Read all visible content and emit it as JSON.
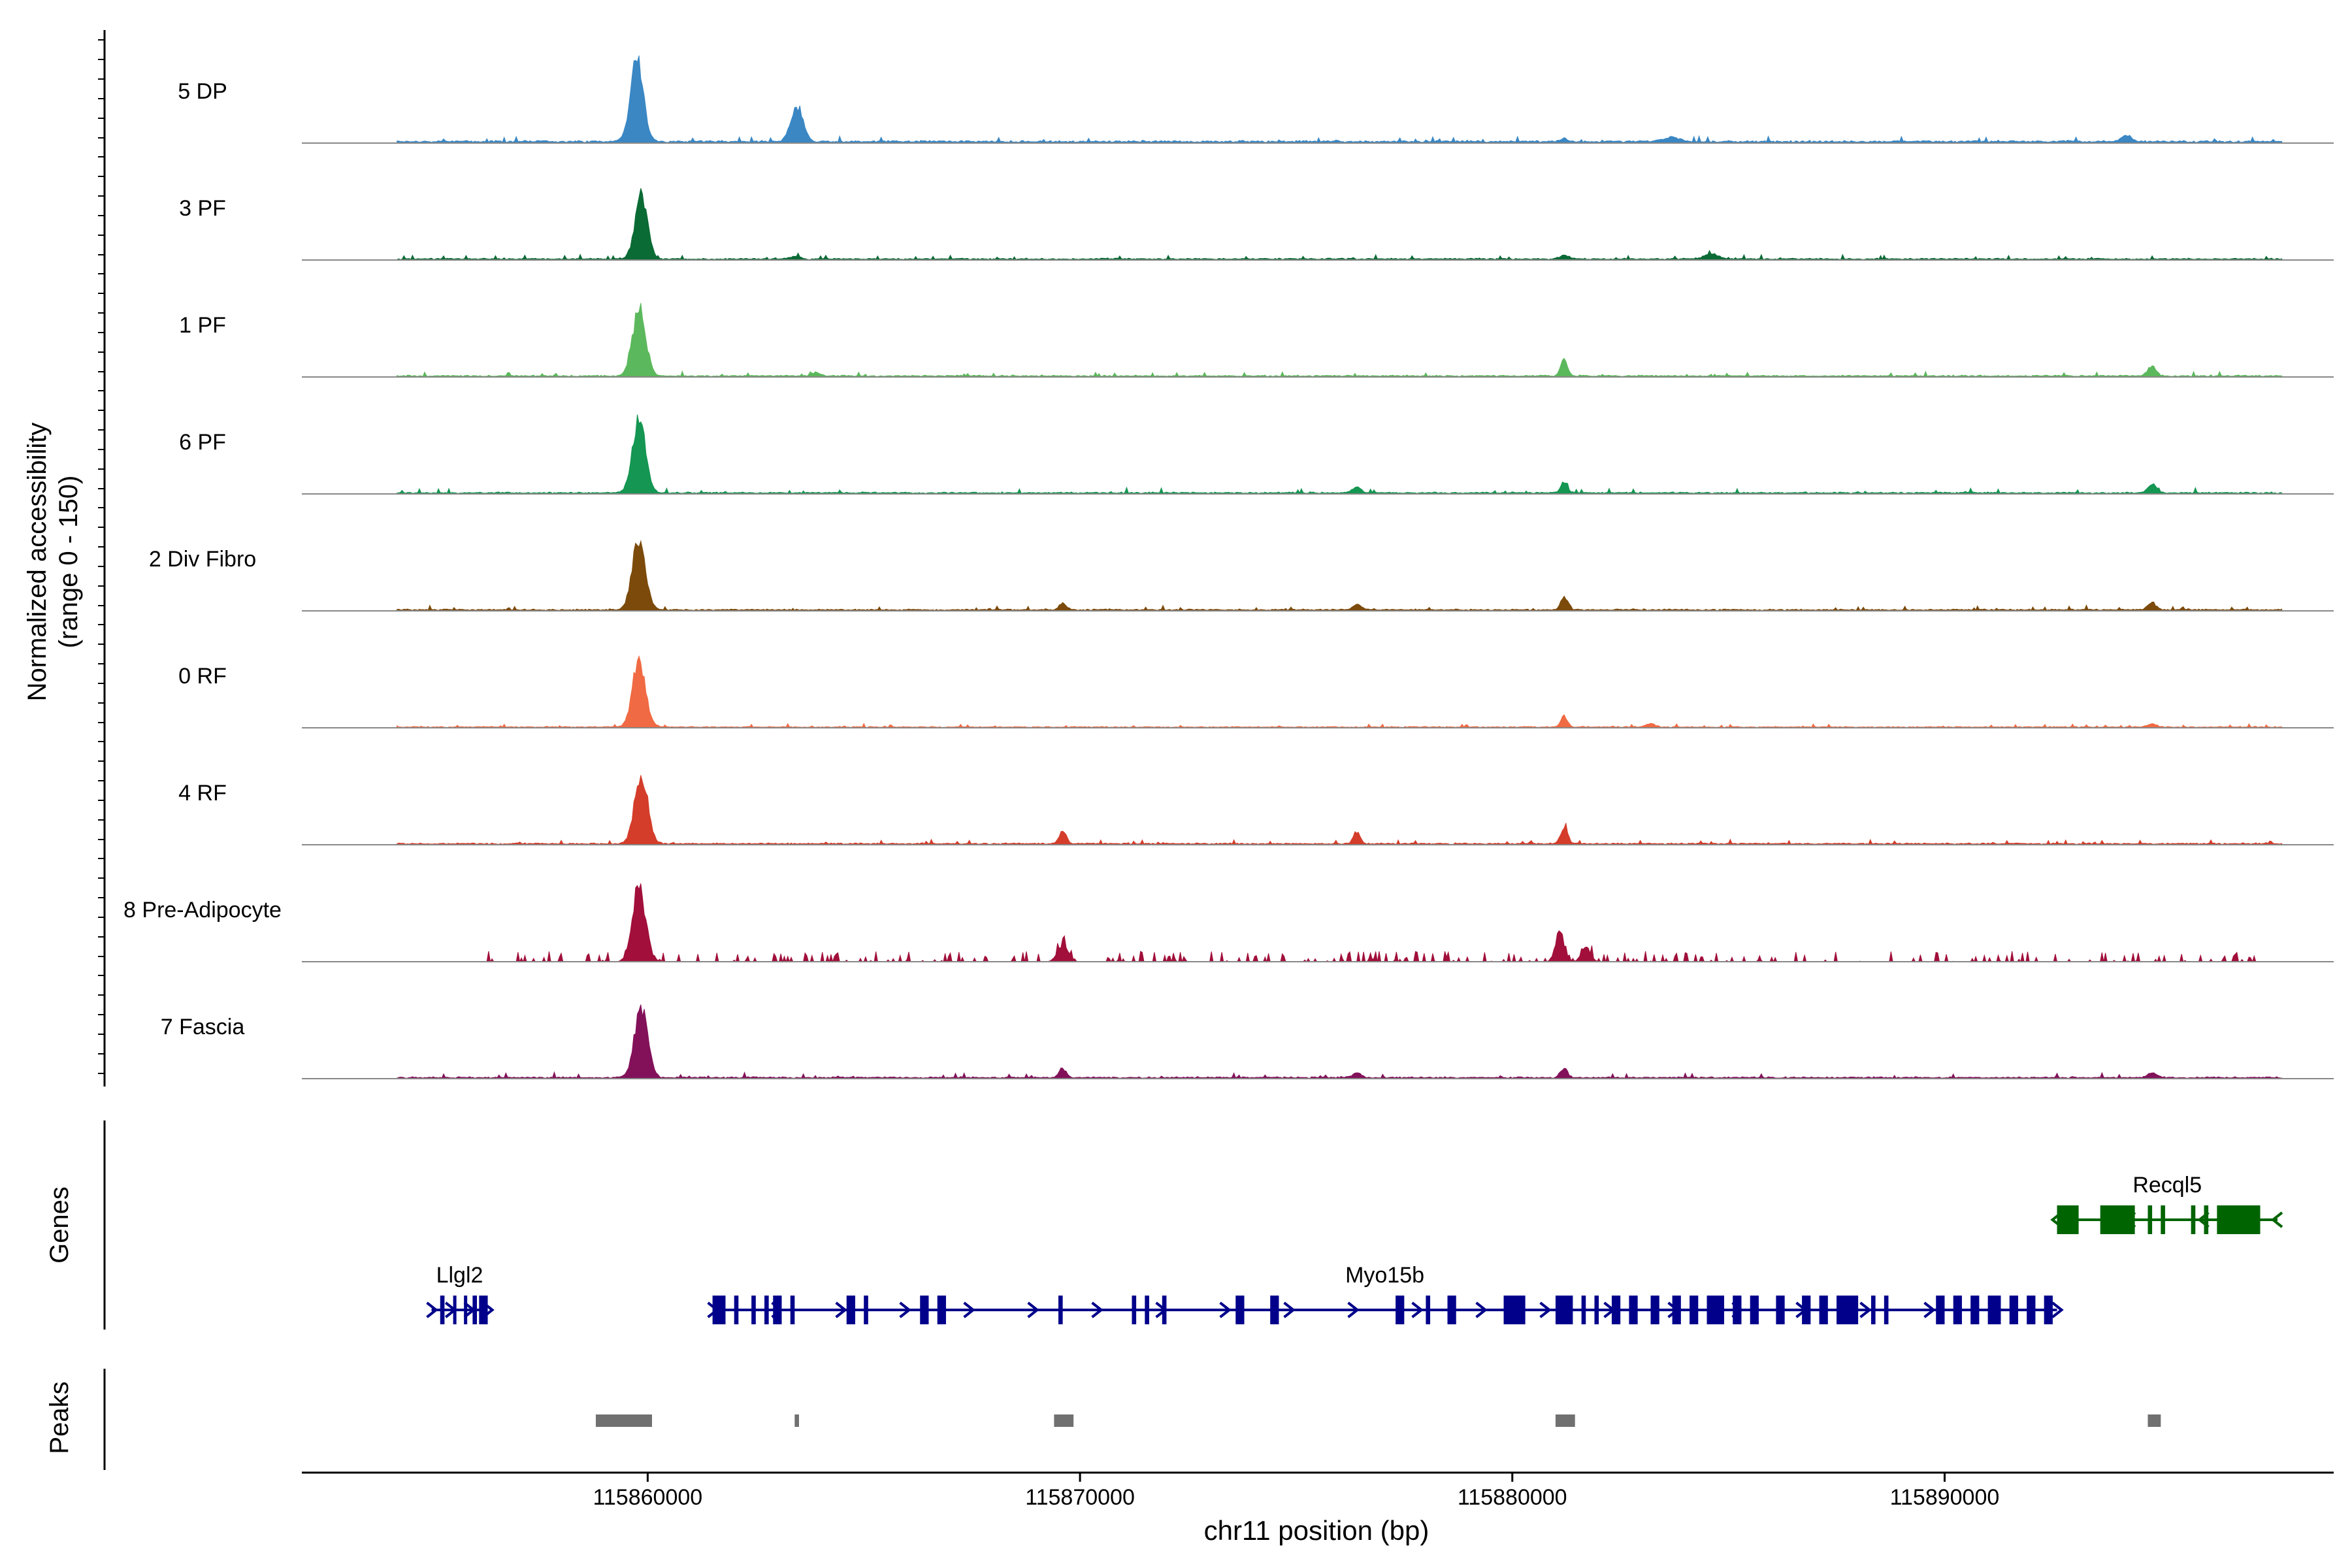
{
  "chart_data": {
    "type": "area",
    "chromosome": "chr11",
    "xlabel": "chr11 position (bp)",
    "ylabel_line1": "Normalized accessibility",
    "ylabel_line2": "(range 0 - 150)",
    "xlim": [
      115852000,
      115899000
    ],
    "yrange": [
      0,
      150
    ],
    "xticks": [
      115860000,
      115870000,
      115880000,
      115890000
    ],
    "xtick_labels": [
      "115860000",
      "115870000",
      "115880000",
      "115890000"
    ],
    "panel_labels": {
      "genes": "Genes",
      "peaks": "Peaks"
    },
    "tracks": [
      {
        "name": "5 DP",
        "color": "#3a87c4",
        "data_start": 115854200,
        "data_end": 115897800,
        "baseline": 3,
        "noise": 3,
        "sparse": false,
        "peaks": [
          [
            115859750,
            138,
            150
          ],
          [
            115863450,
            62,
            140
          ],
          [
            115881200,
            5,
            80
          ],
          [
            115883700,
            7,
            200
          ],
          [
            115894200,
            10,
            120
          ]
        ]
      },
      {
        "name": "3 PF",
        "color": "#0a6b35",
        "data_start": 115854200,
        "data_end": 115897800,
        "baseline": 2,
        "noise": 2.5,
        "sparse": false,
        "peaks": [
          [
            115859850,
            110,
            140
          ],
          [
            115863400,
            5,
            100
          ],
          [
            115881200,
            7,
            100
          ],
          [
            115884600,
            9,
            160
          ]
        ]
      },
      {
        "name": "1 PF",
        "color": "#5cb85c",
        "data_start": 115854200,
        "data_end": 115897800,
        "baseline": 2,
        "noise": 2.5,
        "sparse": false,
        "peaks": [
          [
            115859800,
            118,
            150
          ],
          [
            115863900,
            6,
            100
          ],
          [
            115881200,
            28,
            80
          ],
          [
            115894800,
            16,
            100
          ]
        ]
      },
      {
        "name": "6 PF",
        "color": "#159652",
        "data_start": 115854200,
        "data_end": 115897800,
        "baseline": 2,
        "noise": 3,
        "sparse": false,
        "peaks": [
          [
            115859800,
            122,
            150
          ],
          [
            115876400,
            10,
            100
          ],
          [
            115881200,
            18,
            80
          ],
          [
            115894800,
            15,
            100
          ]
        ]
      },
      {
        "name": "2 Div Fibro",
        "color": "#7c4a0a",
        "data_start": 115854200,
        "data_end": 115897800,
        "baseline": 2,
        "noise": 2.5,
        "sparse": false,
        "peaks": [
          [
            115859800,
            122,
            150
          ],
          [
            115869600,
            12,
            80
          ],
          [
            115876400,
            10,
            100
          ],
          [
            115881200,
            24,
            80
          ],
          [
            115894800,
            12,
            100
          ]
        ]
      },
      {
        "name": "0 RF",
        "color": "#f06a43",
        "data_start": 115854200,
        "data_end": 115897800,
        "baseline": 1.5,
        "noise": 2,
        "sparse": false,
        "peaks": [
          [
            115859800,
            112,
            150
          ],
          [
            115881200,
            18,
            80
          ],
          [
            115883200,
            6,
            100
          ],
          [
            115894800,
            6,
            100
          ]
        ]
      },
      {
        "name": "4 RF",
        "color": "#d43d2a",
        "data_start": 115854200,
        "data_end": 115897800,
        "baseline": 2,
        "noise": 2.5,
        "sparse": false,
        "peaks": [
          [
            115859850,
            118,
            150
          ],
          [
            115869600,
            22,
            80
          ],
          [
            115876400,
            22,
            80
          ],
          [
            115881200,
            30,
            80
          ]
        ]
      },
      {
        "name": "8 Pre-Adipocyte",
        "color": "#a10f3a",
        "data_start": 115856200,
        "data_end": 115897600,
        "baseline": 0,
        "noise": 18,
        "sparse": true,
        "peaks": [
          [
            115859800,
            130,
            150
          ],
          [
            115869600,
            30,
            120
          ],
          [
            115881100,
            48,
            100
          ],
          [
            115881700,
            28,
            100
          ]
        ]
      },
      {
        "name": "7 Fascia",
        "color": "#83115a",
        "data_start": 115854200,
        "data_end": 115897800,
        "baseline": 2,
        "noise": 3,
        "sparse": false,
        "peaks": [
          [
            115859850,
            122,
            150
          ],
          [
            115869600,
            16,
            80
          ],
          [
            115876400,
            8,
            100
          ],
          [
            115881200,
            16,
            80
          ],
          [
            115894800,
            8,
            100
          ]
        ]
      }
    ],
    "genes": [
      {
        "name": "Llgl2",
        "color": "#00008b",
        "strand": "+",
        "start": 115855000,
        "end": 115856300,
        "exons": [
          [
            115855200,
            115855300
          ],
          [
            115855500,
            115855560
          ],
          [
            115855750,
            115855810
          ],
          [
            115855950,
            115856050
          ],
          [
            115856100,
            115856300
          ]
        ]
      },
      {
        "name": "Myo15b",
        "color": "#00008b",
        "strand": "+",
        "start": 115861500,
        "end": 115892600,
        "exons": [
          [
            115861500,
            115861800
          ],
          [
            115862000,
            115862100
          ],
          [
            115862400,
            115862500
          ],
          [
            115862700,
            115862800
          ],
          [
            115862900,
            115863100
          ],
          [
            115863300,
            115863400
          ],
          [
            115864600,
            115864800
          ],
          [
            115865000,
            115865100
          ],
          [
            115866300,
            115866500
          ],
          [
            115866700,
            115866900
          ],
          [
            115869500,
            115869600
          ],
          [
            115871200,
            115871300
          ],
          [
            115871500,
            115871600
          ],
          [
            115871900,
            115872000
          ],
          [
            115873600,
            115873800
          ],
          [
            115874400,
            115874600
          ],
          [
            115877300,
            115877500
          ],
          [
            115878000,
            115878100
          ],
          [
            115878500,
            115878700
          ],
          [
            115879800,
            115880300
          ],
          [
            115881000,
            115881400
          ],
          [
            115881600,
            115881700
          ],
          [
            115881900,
            115882000
          ],
          [
            115882300,
            115882500
          ],
          [
            115882700,
            115882900
          ],
          [
            115883200,
            115883400
          ],
          [
            115883700,
            115883900
          ],
          [
            115884100,
            115884300
          ],
          [
            115884500,
            115884900
          ],
          [
            115885100,
            115885300
          ],
          [
            115885500,
            115885700
          ],
          [
            115886100,
            115886300
          ],
          [
            115886700,
            115886900
          ],
          [
            115887100,
            115887300
          ],
          [
            115887500,
            115888000
          ],
          [
            115888300,
            115888400
          ],
          [
            115888600,
            115888700
          ],
          [
            115889800,
            115890000
          ],
          [
            115890200,
            115890400
          ],
          [
            115890600,
            115890800
          ],
          [
            115891000,
            115891300
          ],
          [
            115891500,
            115891700
          ],
          [
            115891900,
            115892100
          ],
          [
            115892300,
            115892500
          ]
        ]
      },
      {
        "name": "Recql5",
        "color": "#006400",
        "strand": "-",
        "start": 115892600,
        "end": 115897700,
        "exons": [
          [
            115892600,
            115893100
          ],
          [
            115893600,
            115894400
          ],
          [
            115894700,
            115894800
          ],
          [
            115895000,
            115895100
          ],
          [
            115895700,
            115895800
          ],
          [
            115896000,
            115896100
          ],
          [
            115896300,
            115897300
          ]
        ]
      }
    ],
    "peaks": [
      [
        115858800,
        115860100
      ],
      [
        115863400,
        115863500
      ],
      [
        115869400,
        115869850
      ],
      [
        115881000,
        115881450
      ],
      [
        115894700,
        115895000
      ]
    ]
  }
}
